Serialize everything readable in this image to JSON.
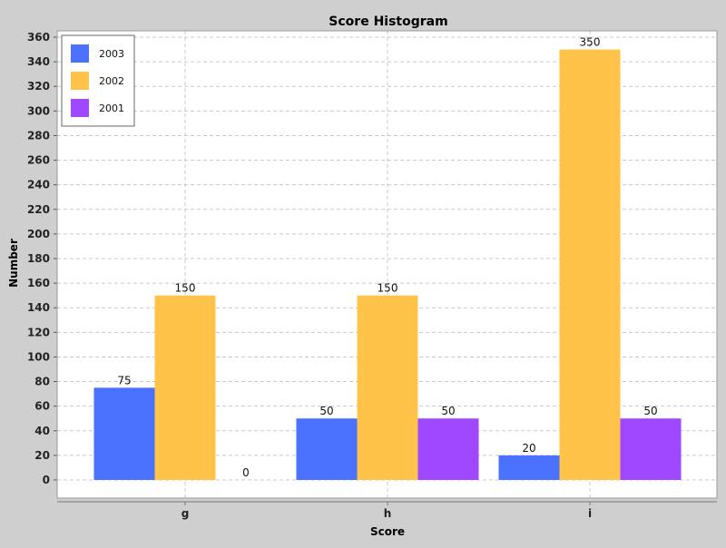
{
  "chart_data": {
    "type": "bar",
    "title": "Score Histogram",
    "xlabel": "Score",
    "ylabel": "Number",
    "categories": [
      "g",
      "h",
      "i"
    ],
    "series": [
      {
        "name": "2003",
        "color": "#4a72ff",
        "values": [
          75,
          50,
          20
        ]
      },
      {
        "name": "2002",
        "color": "#ffc34a",
        "values": [
          150,
          150,
          350
        ]
      },
      {
        "name": "2001",
        "color": "#9f48ff",
        "values": [
          0,
          50,
          50
        ]
      }
    ],
    "ylim": [
      0,
      360
    ],
    "yticks": [
      0,
      20,
      40,
      60,
      80,
      100,
      120,
      140,
      160,
      180,
      200,
      220,
      240,
      260,
      280,
      300,
      320,
      340,
      360
    ],
    "grid": true,
    "legend_position": "top-left",
    "colors": {
      "background": "#cfcfcf",
      "plot_background": "#ffffff",
      "gridline": "#c8c8c8"
    }
  }
}
